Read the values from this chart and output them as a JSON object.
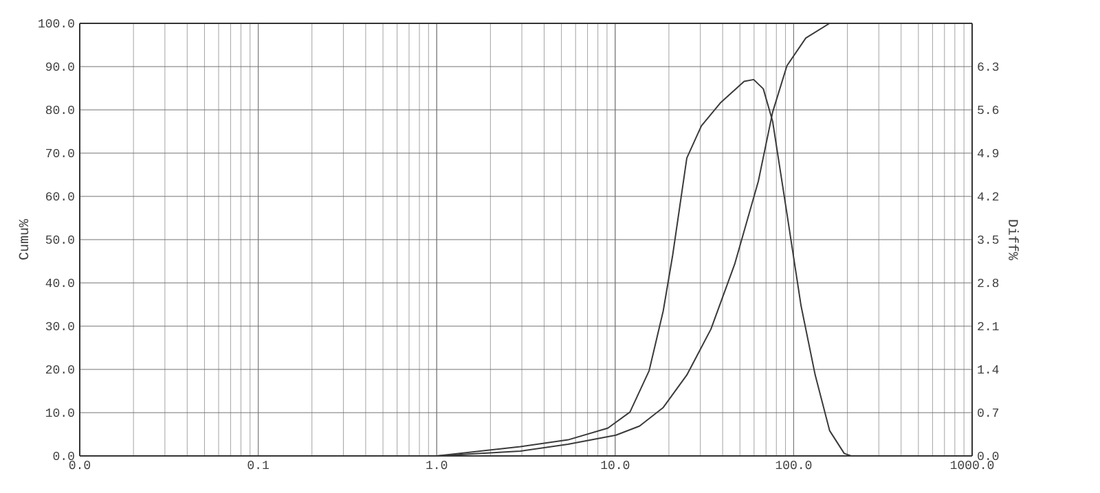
{
  "chart_data": {
    "type": "line",
    "xlabel": null,
    "ylabel": "Cumu%",
    "y2label": "Diff%",
    "log": "x",
    "grid": true,
    "marker": "none",
    "line_style": "solid",
    "xlim": [
      0.01,
      1000
    ],
    "xticks": [
      {
        "value": 0.01,
        "label": "0.0"
      },
      {
        "value": 0.1,
        "label": "0.1"
      },
      {
        "value": 1,
        "label": "1.0"
      },
      {
        "value": 10,
        "label": "10.0"
      },
      {
        "value": 100,
        "label": "100.0"
      },
      {
        "value": 1000,
        "label": "1000.0"
      }
    ],
    "ylim": [
      0,
      100
    ],
    "yticks": [
      {
        "value": 0,
        "label": "0.0"
      },
      {
        "value": 10,
        "label": "10.0"
      },
      {
        "value": 20,
        "label": "20.0"
      },
      {
        "value": 30,
        "label": "30.0"
      },
      {
        "value": 40,
        "label": "40.0"
      },
      {
        "value": 50,
        "label": "50.0"
      },
      {
        "value": 60,
        "label": "60.0"
      },
      {
        "value": 70,
        "label": "70.0"
      },
      {
        "value": 80,
        "label": "80.0"
      },
      {
        "value": 90,
        "label": "90.0"
      },
      {
        "value": 100,
        "label": "100.0"
      }
    ],
    "y2lim": [
      0,
      7
    ],
    "y2ticks": [
      {
        "value": 0,
        "label": "0.0"
      },
      0.7,
      1.4,
      2.1,
      2.8,
      3.5,
      4.2,
      4.9,
      5.6,
      6.3,
      {
        "value": 7,
        "label": null
      }
    ],
    "series": [
      {
        "color": "#3a3a3a",
        "x": [
          1,
          2.94,
          5.44,
          10.1,
          13.7,
          18.6,
          25.2,
          34.4,
          46.7,
          63.4,
          76.3,
          91.7,
          117,
          159,
          1000
        ],
        "values": [
          0,
          1.1,
          2.7,
          4.8,
          6.9,
          11.2,
          18.7,
          29.3,
          44.3,
          63.5,
          79.5,
          90.2,
          96.6,
          100,
          100
        ]
      },
      {
        "color": "#3a3a3a",
        "axis": "y2",
        "x": [
          1,
          2.94,
          5.44,
          9.1,
          12.1,
          15.5,
          18.6,
          21,
          25.2,
          30.4,
          38.8,
          52.8,
          59.7,
          67.6,
          76.3,
          91.7,
          110,
          132,
          159,
          192,
          210
        ],
        "values": [
          0,
          0.15,
          0.26,
          0.45,
          0.71,
          1.38,
          2.35,
          3.25,
          4.82,
          5.34,
          5.71,
          6.06,
          6.09,
          5.94,
          5.41,
          3.92,
          2.43,
          1.31,
          0.41,
          0.04,
          0
        ]
      }
    ]
  }
}
